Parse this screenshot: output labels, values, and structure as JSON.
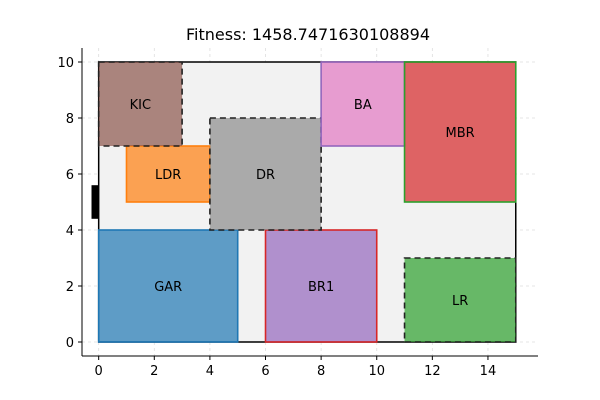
{
  "title": "Fitness: 1458.7471630108894",
  "chart_data": {
    "type": "floorplan",
    "title": "Fitness: 1458.7471630108894",
    "xlim": [
      -0.6,
      15.8
    ],
    "ylim": [
      -0.5,
      10.5
    ],
    "xticks": [
      0,
      2,
      4,
      6,
      8,
      10,
      12,
      14
    ],
    "yticks": [
      0,
      2,
      4,
      6,
      8,
      10
    ],
    "grid": true,
    "boundary": {
      "x0": 0,
      "y0": 0,
      "x1": 15,
      "y1": 10,
      "fill": "#f2f2f2",
      "stroke": "#000000"
    },
    "door": {
      "x": -0.15,
      "y0": 4.4,
      "y1": 5.6,
      "color": "#000000"
    },
    "rooms": [
      {
        "name": "GAR",
        "x": 0,
        "y": 0,
        "w": 5,
        "h": 4,
        "fill": "#1f77b4",
        "stroke": "#1f77b4",
        "dashed": false,
        "label": "GAR"
      },
      {
        "name": "BR1",
        "x": 6,
        "y": 0,
        "w": 4,
        "h": 4,
        "fill": "#9467bd",
        "stroke": "#d62728",
        "dashed": false,
        "label": "BR1"
      },
      {
        "name": "LR",
        "x": 11,
        "y": 0,
        "w": 4,
        "h": 3,
        "fill": "#2ca02c",
        "stroke": "#222222",
        "dashed": true,
        "label": "LR"
      },
      {
        "name": "LDR",
        "x": 1,
        "y": 5,
        "w": 3,
        "h": 2,
        "fill": "#ff7f0e",
        "stroke": "#ff7f0e",
        "dashed": false,
        "label": "LDR"
      },
      {
        "name": "DR",
        "x": 4,
        "y": 4,
        "w": 4,
        "h": 4,
        "fill": "#8c8c8c",
        "stroke": "#222222",
        "dashed": true,
        "label": "DR"
      },
      {
        "name": "KIC",
        "x": 0,
        "y": 7,
        "w": 3,
        "h": 3,
        "fill": "#8c564b",
        "stroke": "#222222",
        "dashed": true,
        "label": "KIC"
      },
      {
        "name": "BA",
        "x": 8,
        "y": 7,
        "w": 3,
        "h": 3,
        "fill": "#e377c2",
        "stroke": "#9467bd",
        "dashed": false,
        "label": "BA"
      },
      {
        "name": "MBR",
        "x": 11,
        "y": 5,
        "w": 4,
        "h": 5,
        "fill": "#d62728",
        "stroke": "#2ca02c",
        "dashed": false,
        "label": "MBR"
      }
    ]
  }
}
